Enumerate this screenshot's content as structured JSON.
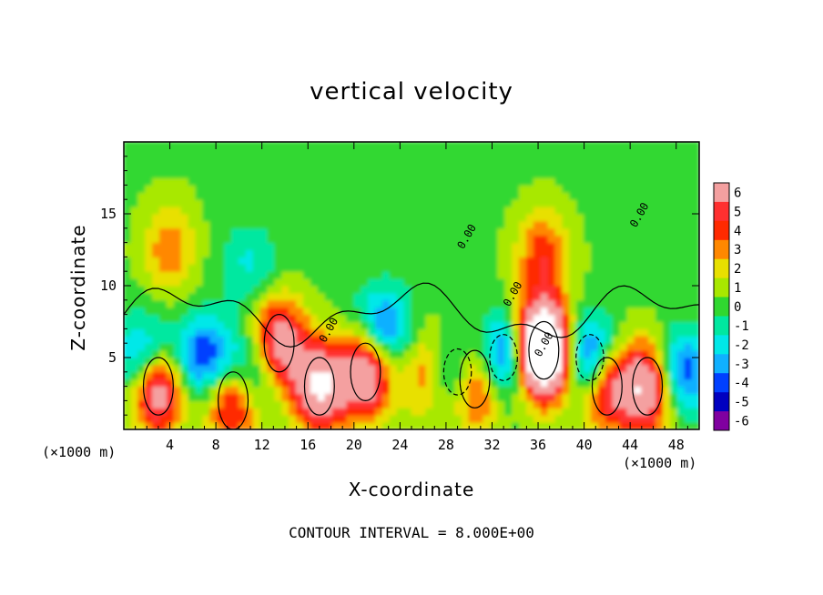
{
  "chart_data": {
    "type": "heatmap",
    "title": "vertical velocity",
    "xlabel": "X-coordinate",
    "ylabel": "Z-coordinate",
    "x_unit_label": "(×1000 m)",
    "x_ticks": [
      4,
      8,
      12,
      16,
      20,
      24,
      28,
      32,
      36,
      40,
      44,
      48
    ],
    "y_ticks": [
      5,
      10,
      15
    ],
    "xlim": [
      0,
      50
    ],
    "ylim": [
      0,
      20
    ],
    "contour_interval_text": "CONTOUR INTERVAL = 8.000E+00",
    "contour_labels": [
      "0.00",
      "0.00",
      "0.00",
      "0.00",
      "0.00"
    ],
    "colorbar": {
      "levels": [
        6,
        5,
        4,
        3,
        2,
        1,
        0,
        -1,
        -2,
        -3,
        -4,
        -5,
        -6
      ],
      "colors": [
        "#f4a0a0",
        "#ff3030",
        "#ff2a00",
        "#ff8800",
        "#e8e000",
        "#a8e800",
        "#30d830",
        "#00e8a0",
        "#00e8e8",
        "#10b0ff",
        "#0040ff",
        "#0000c0",
        "#8000a0"
      ]
    },
    "features": [
      {
        "kind": "updraft",
        "x": 3,
        "z": 3,
        "strength": 8
      },
      {
        "kind": "updraft",
        "x": 4,
        "z": 12.5,
        "strength": 3
      },
      {
        "kind": "updraft",
        "x": 9.5,
        "z": 2,
        "strength": 6
      },
      {
        "kind": "updraft",
        "x": 13.5,
        "z": 6,
        "strength": 7
      },
      {
        "kind": "updraft",
        "x": 17,
        "z": 3,
        "strength": 8
      },
      {
        "kind": "updraft",
        "x": 21,
        "z": 4,
        "strength": 8
      },
      {
        "kind": "updraft",
        "x": 26.5,
        "z": 4,
        "strength": 4
      },
      {
        "kind": "updraft",
        "x": 30.5,
        "z": 3.5,
        "strength": 8
      },
      {
        "kind": "updraft",
        "x": 36.5,
        "z": 5.5,
        "strength": 16
      },
      {
        "kind": "updraft",
        "x": 36.5,
        "z": 12,
        "strength": 4
      },
      {
        "kind": "updraft",
        "x": 42,
        "z": 3,
        "strength": 6
      },
      {
        "kind": "updraft",
        "x": 45.5,
        "z": 3,
        "strength": 8
      },
      {
        "kind": "downdraft",
        "x": 2,
        "z": 5,
        "strength": 5
      },
      {
        "kind": "downdraft",
        "x": 7,
        "z": 5,
        "strength": 5
      },
      {
        "kind": "downdraft",
        "x": 11,
        "z": 4,
        "strength": 4
      },
      {
        "kind": "downdraft",
        "x": 11,
        "z": 11.5,
        "strength": 2
      },
      {
        "kind": "downdraft",
        "x": 22.5,
        "z": 7,
        "strength": 5
      },
      {
        "kind": "downdraft",
        "x": 29,
        "z": 4,
        "strength": 6
      },
      {
        "kind": "downdraft",
        "x": 33,
        "z": 5,
        "strength": 6
      },
      {
        "kind": "downdraft",
        "x": 40.5,
        "z": 5,
        "strength": 6
      },
      {
        "kind": "downdraft",
        "x": 48.5,
        "z": 4,
        "strength": 5
      }
    ]
  }
}
